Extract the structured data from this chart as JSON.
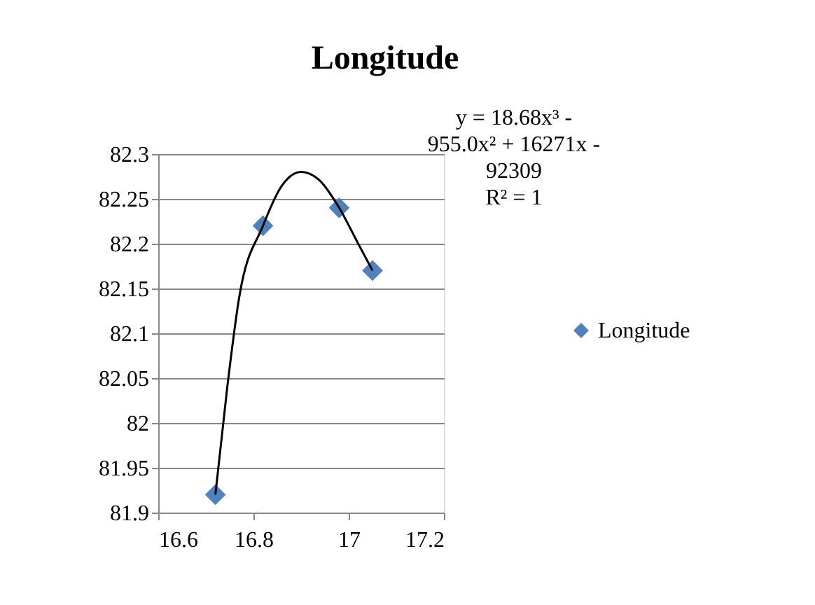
{
  "chart_data": {
    "type": "scatter",
    "title": "Longitude",
    "x": [
      16.72,
      16.82,
      16.98,
      17.05
    ],
    "series": [
      {
        "name": "Longitude",
        "color": "#4f81bd",
        "values": [
          81.92,
          82.22,
          82.24,
          82.17
        ],
        "marker": "diamond"
      },
      {
        "type": "line",
        "color": "#000000",
        "line_style": "solid",
        "x": [
          16.72,
          16.745,
          16.77,
          16.82,
          16.86,
          16.9,
          16.94,
          16.98,
          17.02,
          17.05
        ],
        "values": [
          81.92,
          82.04,
          82.14,
          82.22,
          82.265,
          82.28,
          82.27,
          82.24,
          82.2,
          82.17
        ]
      }
    ],
    "xlim": [
      16.6,
      17.2
    ],
    "xticks": [
      16.6,
      16.8,
      17,
      17.2
    ],
    "ylim": [
      81.9,
      82.3
    ],
    "yticks": [
      81.9,
      81.95,
      82,
      82.05,
      82.1,
      82.15,
      82.2,
      82.25,
      82.3
    ],
    "grid": "y",
    "legend": "right",
    "annotations": [
      "y = 18.68x³ - 955.0x² + 16271x - 92309",
      "R² = 1"
    ]
  }
}
